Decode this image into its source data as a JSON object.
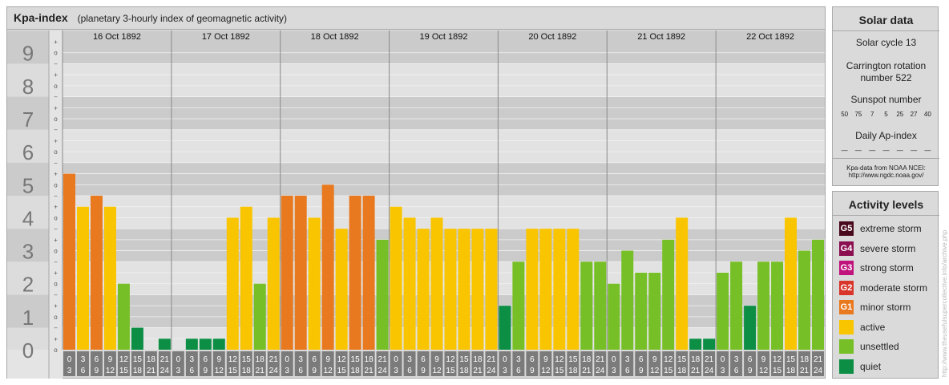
{
  "header": {
    "title": "Kpa-index",
    "subtitle": "(planetary 3-hourly index of geomagnetic activity)"
  },
  "chart_data": {
    "type": "bar",
    "title": "Kpa-index",
    "subtitle": "(planetary 3-hourly index of geomagnetic activity)",
    "y_range": [
      0,
      9
    ],
    "y_ticks": [
      "0",
      "1",
      "2",
      "3",
      "4",
      "5",
      "6",
      "7",
      "8",
      "9"
    ],
    "minor_ticks": [
      "o",
      "+",
      "−"
    ],
    "days": [
      "16 Oct 1892",
      "17 Oct 1892",
      "18 Oct 1892",
      "19 Oct 1892",
      "20 Oct 1892",
      "21 Oct 1892",
      "22 Oct 1892"
    ],
    "intervals": [
      [
        "0",
        "3"
      ],
      [
        "3",
        "6"
      ],
      [
        "6",
        "9"
      ],
      [
        "9",
        "12"
      ],
      [
        "12",
        "15"
      ],
      [
        "15",
        "18"
      ],
      [
        "18",
        "21"
      ],
      [
        "21",
        "24"
      ]
    ],
    "values": [
      [
        5.333,
        4.333,
        4.667,
        4.333,
        2.0,
        0.667,
        0.0,
        0.333
      ],
      [
        0.0,
        0.333,
        0.333,
        0.333,
        4.0,
        4.333,
        2.0,
        4.0
      ],
      [
        4.667,
        4.667,
        4.0,
        5.0,
        3.667,
        4.667,
        4.667,
        3.333
      ],
      [
        4.333,
        4.0,
        3.667,
        4.0,
        3.667,
        3.667,
        3.667,
        3.667
      ],
      [
        1.333,
        2.667,
        3.667,
        3.667,
        3.667,
        3.667,
        2.667,
        2.667
      ],
      [
        2.0,
        3.0,
        2.333,
        2.333,
        3.333,
        4.0,
        0.333,
        0.333
      ],
      [
        2.333,
        2.667,
        1.333,
        2.667,
        2.667,
        4.0,
        3.0,
        3.333
      ]
    ],
    "bar_colors": [
      [
        "#e8791e",
        "#f9c400",
        "#e8791e",
        "#f9c400",
        "#77bf26",
        "#0c8e45",
        "#0c8e45",
        "#0c8e45"
      ],
      [
        "#0c8e45",
        "#0c8e45",
        "#0c8e45",
        "#0c8e45",
        "#f9c400",
        "#f9c400",
        "#77bf26",
        "#f9c400"
      ],
      [
        "#e8791e",
        "#e8791e",
        "#f9c400",
        "#e8791e",
        "#f9c400",
        "#e8791e",
        "#e8791e",
        "#77bf26"
      ],
      [
        "#f9c400",
        "#f9c400",
        "#f9c400",
        "#f9c400",
        "#f9c400",
        "#f9c400",
        "#f9c400",
        "#f9c400"
      ],
      [
        "#0c8e45",
        "#77bf26",
        "#f9c400",
        "#f9c400",
        "#f9c400",
        "#f9c400",
        "#77bf26",
        "#77bf26"
      ],
      [
        "#77bf26",
        "#77bf26",
        "#77bf26",
        "#77bf26",
        "#77bf26",
        "#f9c400",
        "#0c8e45",
        "#0c8e45"
      ],
      [
        "#77bf26",
        "#77bf26",
        "#0c8e45",
        "#77bf26",
        "#77bf26",
        "#f9c400",
        "#77bf26",
        "#77bf26"
      ]
    ],
    "grid": true
  },
  "solar": {
    "title": "Solar data",
    "cycle": "Solar cycle 13",
    "carrington_line1": "Carrington rotation",
    "carrington_line2": "number 522",
    "sunspot_label": "Sunspot number",
    "sunspot_values": [
      "50",
      "75",
      "7",
      "5",
      "25",
      "27",
      "40"
    ],
    "ap_label": "Daily Ap-index",
    "ap_values": [
      "—",
      "—",
      "—",
      "—",
      "—",
      "—",
      "—"
    ],
    "source_line1": "Kpa-data from NOAA NCEI:",
    "source_line2": "http://www.ngdc.noaa.gov/"
  },
  "activity": {
    "title": "Activity levels",
    "levels": [
      {
        "badge": "G5",
        "label": "extreme storm",
        "color": "#4a0a1e"
      },
      {
        "badge": "G4",
        "label": "severe storm",
        "color": "#8a0e50"
      },
      {
        "badge": "G3",
        "label": "strong storm",
        "color": "#c0137c"
      },
      {
        "badge": "G2",
        "label": "moderate storm",
        "color": "#d9352a"
      },
      {
        "badge": "G1",
        "label": "minor storm",
        "color": "#e8791e"
      },
      {
        "badge": "",
        "label": "active",
        "color": "#f9c400"
      },
      {
        "badge": "",
        "label": "unsettled",
        "color": "#77bf26"
      },
      {
        "badge": "",
        "label": "quiet",
        "color": "#0c8e45"
      }
    ]
  },
  "credit": "http://www.theusefulsupercollective.info/archive.php"
}
